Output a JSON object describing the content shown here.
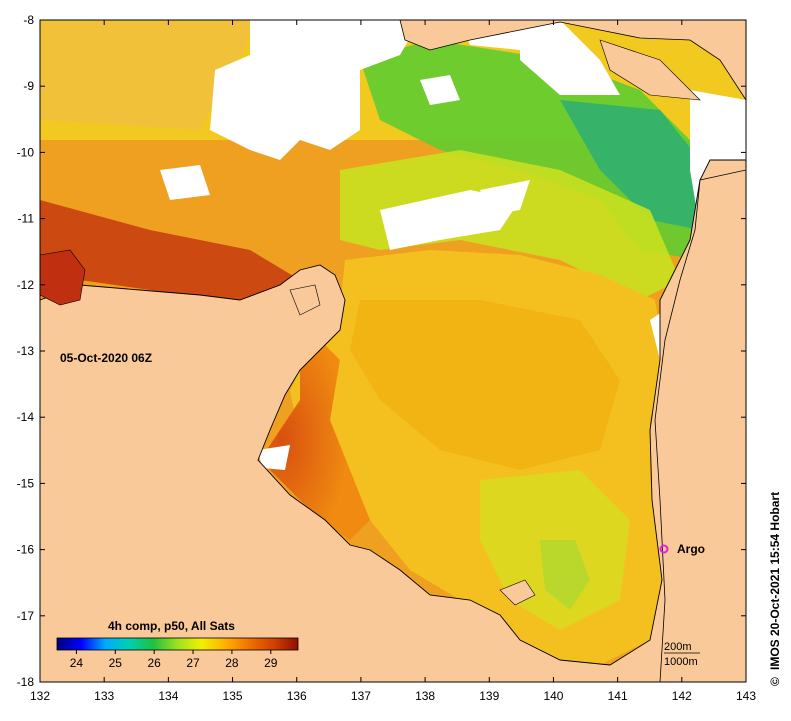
{
  "map": {
    "timestamp_label": "05-Oct-2020 06Z",
    "credit": "IMOS 20-Oct-2021 15:54 Hobart",
    "copyright_symbol": "©",
    "argo_label": "Argo",
    "argo_marker_color": "#e020e0",
    "land_color": "#f9c99a",
    "no_data_color": "#ffffff",
    "coast_color": "#000000",
    "colorbar": {
      "title": "4h comp, p50, All Sats",
      "ticks": [
        "24",
        "25",
        "26",
        "27",
        "28",
        "29"
      ],
      "range": [
        23.5,
        29.7
      ],
      "stops": [
        "#000080",
        "#0000ff",
        "#00aaff",
        "#00d0b0",
        "#20c040",
        "#a0e020",
        "#f0f000",
        "#ffb000",
        "#f07000",
        "#d04000",
        "#901000"
      ]
    },
    "scale_labels": [
      "200m",
      "1000m"
    ],
    "x_ticks": [
      "132",
      "133",
      "134",
      "135",
      "136",
      "137",
      "138",
      "139",
      "140",
      "141",
      "142",
      "143"
    ],
    "y_ticks": [
      "-8",
      "-9",
      "-10",
      "-11",
      "-12",
      "-13",
      "-14",
      "-15",
      "-16",
      "-17",
      "-18"
    ]
  }
}
